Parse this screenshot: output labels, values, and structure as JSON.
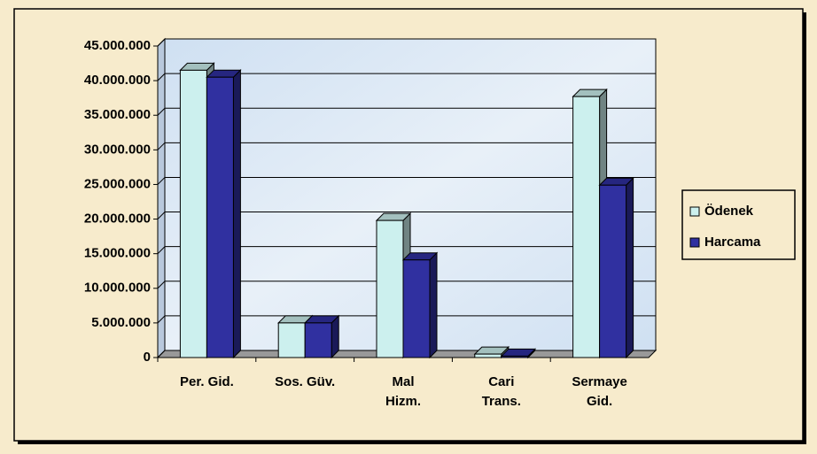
{
  "chart_data": {
    "type": "bar3d",
    "categories": [
      "Per. Gid.",
      "Sos. Güv.",
      "Mal\nHizm.",
      "Cari\nTrans.",
      "Sermaye\nGid."
    ],
    "series": [
      {
        "name": "Ödenek",
        "color": "#ccf0ee",
        "values": [
          41500000,
          5000000,
          19800000,
          500000,
          37700000
        ]
      },
      {
        "name": "Harcama",
        "color": "#3030a0",
        "values": [
          40500000,
          5000000,
          14100000,
          200000,
          24900000
        ]
      }
    ],
    "ylim": [
      0,
      45000000
    ],
    "yticks": [
      {
        "value": 0,
        "label": "0"
      },
      {
        "value": 5000000,
        "label": "5.000.000"
      },
      {
        "value": 10000000,
        "label": "10.000.000"
      },
      {
        "value": 15000000,
        "label": "15.000.000"
      },
      {
        "value": 20000000,
        "label": "20.000.000"
      },
      {
        "value": 25000000,
        "label": "25.000.000"
      },
      {
        "value": 30000000,
        "label": "30.000.000"
      },
      {
        "value": 35000000,
        "label": "35.000.000"
      },
      {
        "value": 40000000,
        "label": "40.000.000"
      },
      {
        "value": 45000000,
        "label": "45.000.000"
      }
    ],
    "grid": true,
    "legend": "right"
  }
}
